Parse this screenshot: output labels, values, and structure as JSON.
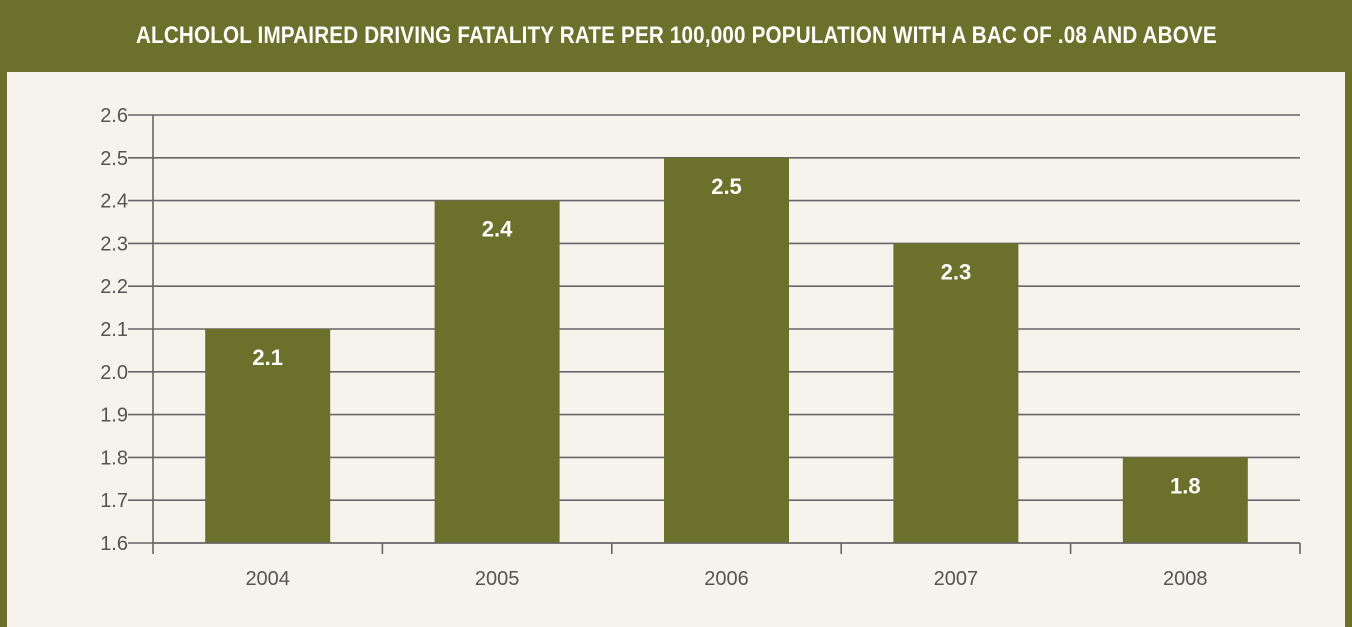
{
  "header": {
    "title": "ALCHOLOL IMPAIRED DRIVING FATALITY RATE PER 100,000 POPULATION WITH A BAC OF .08 AND ABOVE"
  },
  "colors": {
    "accent": "#6b712a",
    "bar": "#6b712a",
    "panel_background": "#f6f2ec",
    "gridline": "#666666"
  },
  "chart_data": {
    "type": "bar",
    "title": "ALCHOLOL IMPAIRED DRIVING FATALITY RATE PER 100,000 POPULATION WITH A BAC OF .08 AND ABOVE",
    "xlabel": "",
    "ylabel": "",
    "categories": [
      "2004",
      "2005",
      "2006",
      "2007",
      "2008"
    ],
    "values": [
      2.1,
      2.4,
      2.5,
      2.3,
      1.8
    ],
    "value_labels": [
      "2.1",
      "2.4",
      "2.5",
      "2.3",
      "1.8"
    ],
    "ylim": [
      1.6,
      2.6
    ],
    "yticks": [
      "1.6",
      "1.7",
      "1.8",
      "1.9",
      "2.0",
      "2.1",
      "2.2",
      "2.3",
      "2.4",
      "2.5",
      "2.6"
    ],
    "grid": true,
    "legend": "none"
  }
}
